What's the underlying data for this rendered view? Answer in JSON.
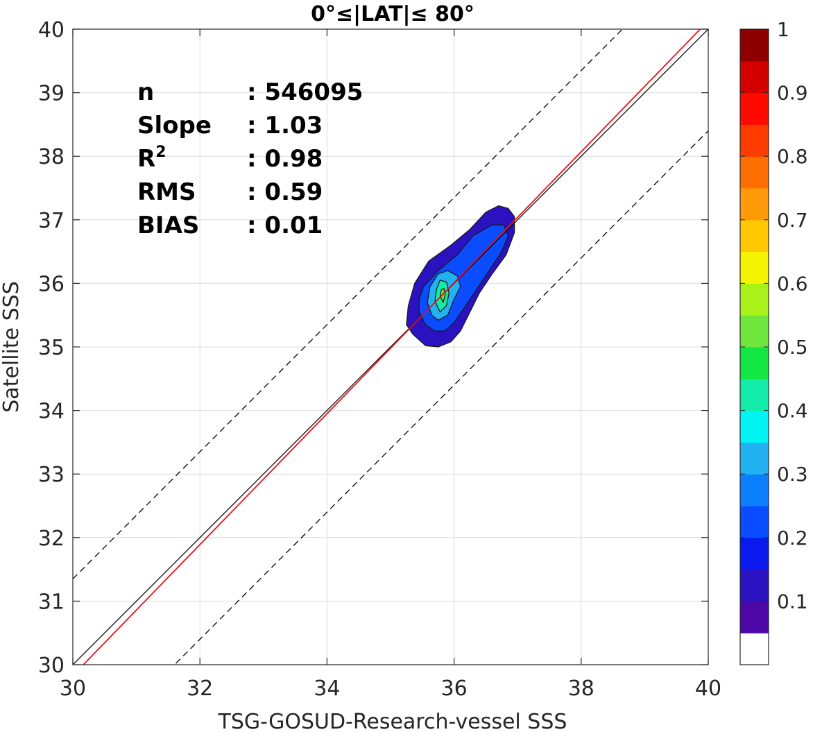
{
  "chart_data": {
    "type": "heatmap",
    "subtype": "normalized-density-contour-scatter",
    "title": "0°≤|LAT|≤ 80°",
    "xlabel": "TSG-GOSUD-Research-vessel SSS",
    "ylabel": "Satellite SSS",
    "xlim": [
      30,
      40
    ],
    "ylim": [
      30,
      40
    ],
    "xticks": [
      30,
      32,
      34,
      36,
      38,
      40
    ],
    "yticks": [
      30,
      31,
      32,
      33,
      34,
      35,
      36,
      37,
      38,
      39,
      40
    ],
    "grid": true,
    "stats": [
      {
        "key": "n",
        "sep": ": ",
        "value": "546095"
      },
      {
        "key": "Slope",
        "sep": ": ",
        "value": "1.03"
      },
      {
        "key": "R",
        "sup": "2",
        "sep": ": ",
        "value": "0.98"
      },
      {
        "key": "RMS",
        "sep": ": ",
        "value": "0.59"
      },
      {
        "key": "BIAS",
        "sep": ": ",
        "value": "0.01"
      }
    ],
    "lines": [
      {
        "role": "identity",
        "slope": 1.0,
        "intercept": 0.0,
        "color": "#000000",
        "dash": false
      },
      {
        "role": "fit",
        "slope": 1.03,
        "intercept": -1.07,
        "color": "#e8101a",
        "dash": false
      },
      {
        "role": "upper-bound",
        "slope": 1.0,
        "intercept": 1.35,
        "color": "#000000",
        "dash": true
      },
      {
        "role": "lower-bound",
        "slope": 1.0,
        "intercept": -1.6,
        "color": "#000000",
        "dash": true
      }
    ],
    "contours": [
      {
        "level": 0.05,
        "color": "#2a12c0",
        "points": [
          [
            35.25,
            35.35
          ],
          [
            35.35,
            35.2
          ],
          [
            35.55,
            35.02
          ],
          [
            35.75,
            35.0
          ],
          [
            35.95,
            35.08
          ],
          [
            36.1,
            35.25
          ],
          [
            36.25,
            35.55
          ],
          [
            36.4,
            35.85
          ],
          [
            36.6,
            36.15
          ],
          [
            36.82,
            36.45
          ],
          [
            36.95,
            36.8
          ],
          [
            36.95,
            37.05
          ],
          [
            36.85,
            37.18
          ],
          [
            36.7,
            37.22
          ],
          [
            36.5,
            37.12
          ],
          [
            36.25,
            36.85
          ],
          [
            35.95,
            36.6
          ],
          [
            35.6,
            36.35
          ],
          [
            35.38,
            36.0
          ],
          [
            35.28,
            35.65
          ]
        ]
      },
      {
        "level": 0.15,
        "color": "#0a4cff",
        "points": [
          [
            35.45,
            35.55
          ],
          [
            35.55,
            35.35
          ],
          [
            35.7,
            35.25
          ],
          [
            35.85,
            35.25
          ],
          [
            36.0,
            35.38
          ],
          [
            36.15,
            35.6
          ],
          [
            36.35,
            35.9
          ],
          [
            36.55,
            36.2
          ],
          [
            36.75,
            36.5
          ],
          [
            36.85,
            36.75
          ],
          [
            36.78,
            36.92
          ],
          [
            36.6,
            36.92
          ],
          [
            36.3,
            36.75
          ],
          [
            36.05,
            36.45
          ],
          [
            35.75,
            36.2
          ],
          [
            35.52,
            35.95
          ],
          [
            35.45,
            35.75
          ]
        ]
      },
      {
        "level": 0.3,
        "color": "#22b2f2",
        "points": [
          [
            35.58,
            35.7
          ],
          [
            35.65,
            35.5
          ],
          [
            35.75,
            35.42
          ],
          [
            35.9,
            35.5
          ],
          [
            36.0,
            35.75
          ],
          [
            36.1,
            35.95
          ],
          [
            36.05,
            36.12
          ],
          [
            35.9,
            36.2
          ],
          [
            35.75,
            36.15
          ],
          [
            35.62,
            35.95
          ]
        ]
      },
      {
        "level": 0.4,
        "color": "#12eca8",
        "points": [
          [
            35.7,
            35.72
          ],
          [
            35.78,
            35.55
          ],
          [
            35.88,
            35.65
          ],
          [
            35.92,
            35.85
          ],
          [
            35.88,
            36.02
          ],
          [
            35.78,
            36.05
          ],
          [
            35.72,
            35.9
          ]
        ]
      },
      {
        "level": 0.5,
        "color": "#6ee63c",
        "points": [
          [
            35.78,
            35.8
          ],
          [
            35.83,
            35.7
          ],
          [
            35.86,
            35.82
          ],
          [
            35.84,
            35.92
          ],
          [
            35.8,
            35.9
          ]
        ]
      }
    ],
    "colorbar": {
      "ticks": [
        0.1,
        0.2,
        0.3,
        0.4,
        0.5,
        0.6,
        0.7,
        0.8,
        0.9,
        1
      ],
      "tick_labels": [
        "0.1",
        "0.2",
        "0.3",
        "0.4",
        "0.5",
        "0.6",
        "0.7",
        "0.8",
        "0.9",
        "1"
      ],
      "range": [
        0,
        1
      ],
      "colors": [
        "#ffffff",
        "#4e08a8",
        "#2a12c0",
        "#0a1aee",
        "#0a4cff",
        "#0a80ff",
        "#22b2f2",
        "#00f4f4",
        "#12eca8",
        "#12e642",
        "#6ee63c",
        "#a8f21a",
        "#f4f400",
        "#ffc800",
        "#ff9a08",
        "#ff6e00",
        "#ff3c00",
        "#ff0a00",
        "#d40000",
        "#8e0000"
      ]
    }
  }
}
